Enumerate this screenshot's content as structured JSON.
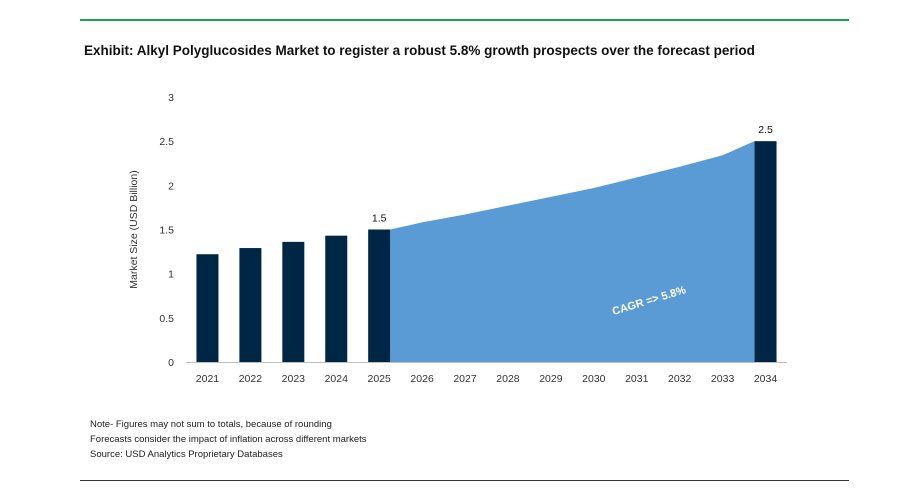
{
  "title": "Exhibit: Alkyl Polyglucosides Market to register a robust 5.8% growth prospects over the forecast period",
  "notes": [
    "Note- Figures may not sum to totals, because of rounding",
    "Forecasts consider the impact of inflation across different markets",
    "Source: USD Analytics Proprietary Databases"
  ],
  "colors": {
    "bar": "#002645",
    "area": "#5b9bd5",
    "axis": "#bfbfbf",
    "accent": "#1aa34a"
  },
  "chart_data": {
    "type": "bar",
    "title": "Exhibit: Alkyl Polyglucosides Market to register a robust 5.8% growth prospects over the forecast period",
    "ylabel": "Market Size (USD Billion)",
    "xlabel": "",
    "ylim": [
      0,
      3
    ],
    "yticks": [
      "0",
      "0.5",
      "1",
      "1.5",
      "2",
      "2.5",
      "3"
    ],
    "categories": [
      "2021",
      "2022",
      "2023",
      "2024",
      "2025",
      "2026",
      "2027",
      "2028",
      "2029",
      "2030",
      "2031",
      "2032",
      "2033",
      "2034"
    ],
    "bars": [
      {
        "x": "2021",
        "value": 1.22
      },
      {
        "x": "2022",
        "value": 1.29
      },
      {
        "x": "2023",
        "value": 1.36
      },
      {
        "x": "2024",
        "value": 1.43
      },
      {
        "x": "2025",
        "value": 1.5,
        "label": "1.5"
      },
      {
        "x": "2034",
        "value": 2.5,
        "label": "2.5"
      }
    ],
    "area": {
      "x": [
        "2025",
        "2026",
        "2027",
        "2028",
        "2029",
        "2030",
        "2031",
        "2032",
        "2033",
        "2034"
      ],
      "values": [
        1.5,
        1.58,
        1.67,
        1.77,
        1.87,
        1.97,
        2.09,
        2.21,
        2.34,
        2.5
      ]
    },
    "annotation": "CAGR =>  5.8%",
    "grid": false
  }
}
